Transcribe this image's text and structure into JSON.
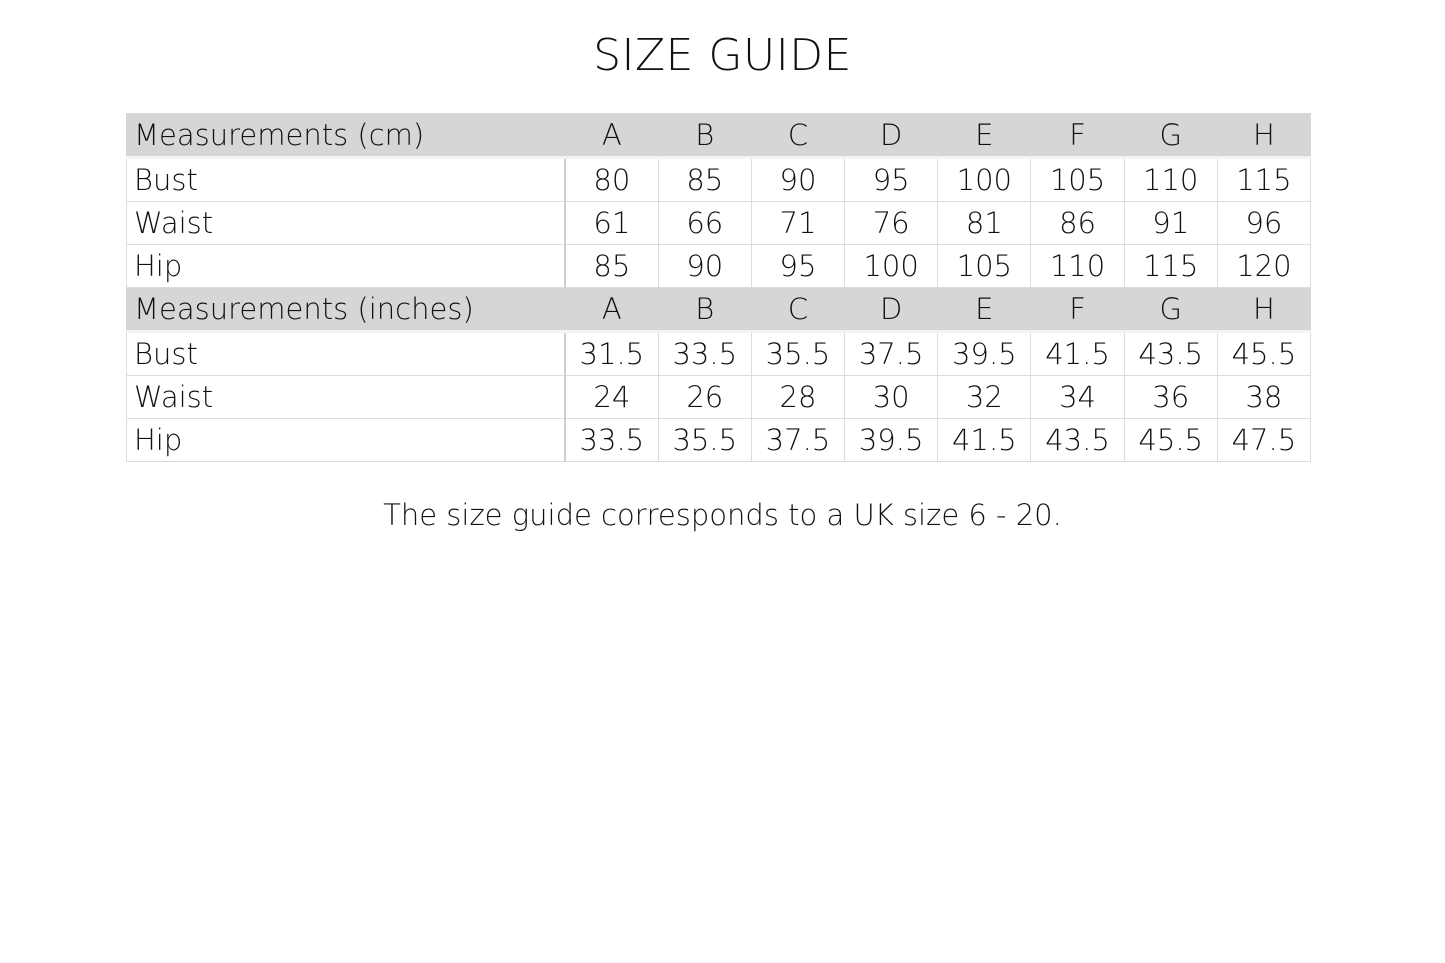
{
  "title": "SIZE GUIDE",
  "sizes": [
    "A",
    "B",
    "C",
    "D",
    "E",
    "F",
    "G",
    "H"
  ],
  "sections": [
    {
      "header": "Measurements (cm)",
      "rows": [
        {
          "label": "Bust",
          "values": [
            "80",
            "85",
            "90",
            "95",
            "100",
            "105",
            "110",
            "115"
          ]
        },
        {
          "label": "Waist",
          "values": [
            "61",
            "66",
            "71",
            "76",
            "81",
            "86",
            "91",
            "96"
          ]
        },
        {
          "label": "Hip",
          "values": [
            "85",
            "90",
            "95",
            "100",
            "105",
            "110",
            "115",
            "120"
          ]
        }
      ]
    },
    {
      "header": "Measurements (inches)",
      "rows": [
        {
          "label": "Bust",
          "values": [
            "31.5",
            "33.5",
            "35.5",
            "37.5",
            "39.5",
            "41.5",
            "43.5",
            "45.5"
          ]
        },
        {
          "label": "Waist",
          "values": [
            "24",
            "26",
            "28",
            "30",
            "32",
            "34",
            "36",
            "38"
          ]
        },
        {
          "label": "Hip",
          "values": [
            "33.5",
            "35.5",
            "37.5",
            "39.5",
            "41.5",
            "43.5",
            "45.5",
            "47.5"
          ]
        }
      ]
    }
  ],
  "note": "The size guide corresponds to a UK size 6 - 20.",
  "colors": {
    "header_bg": "#d6d6d6",
    "border": "#dcdcdc"
  }
}
